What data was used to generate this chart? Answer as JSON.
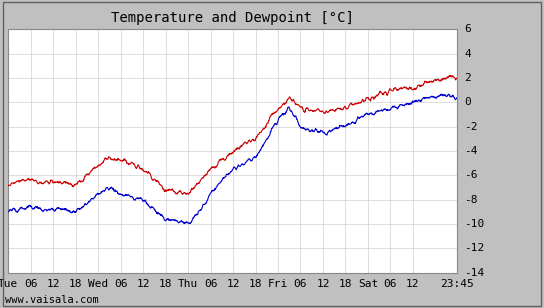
{
  "title": "Temperature and Dewpoint [°C]",
  "ylim": [
    -14,
    6
  ],
  "yticks": [
    -14,
    -12,
    -10,
    -8,
    -6,
    -4,
    -2,
    0,
    2,
    4,
    6
  ],
  "x_tick_labels": [
    "Tue",
    "06",
    "12",
    "18",
    "Wed",
    "06",
    "12",
    "18",
    "Thu",
    "06",
    "12",
    "18",
    "Fri",
    "06",
    "12",
    "18",
    "Sat",
    "06",
    "12",
    "23:45"
  ],
  "x_tick_positions": [
    0,
    6,
    12,
    18,
    24,
    30,
    36,
    42,
    48,
    54,
    60,
    66,
    72,
    78,
    84,
    90,
    96,
    102,
    108,
    119.75
  ],
  "xlim": [
    0,
    119.75
  ],
  "plot_bg_color": "#ffffff",
  "outer_bg_color": "#c0c0c0",
  "grid_color": "#d0d0d0",
  "temp_color": "#cc0000",
  "dewpoint_color": "#0000cc",
  "line_width": 0.8,
  "watermark": "www.vaisala.com",
  "title_fontsize": 10,
  "tick_fontsize": 8,
  "watermark_fontsize": 7.5,
  "border_color": "#808080",
  "n_points": 1440
}
